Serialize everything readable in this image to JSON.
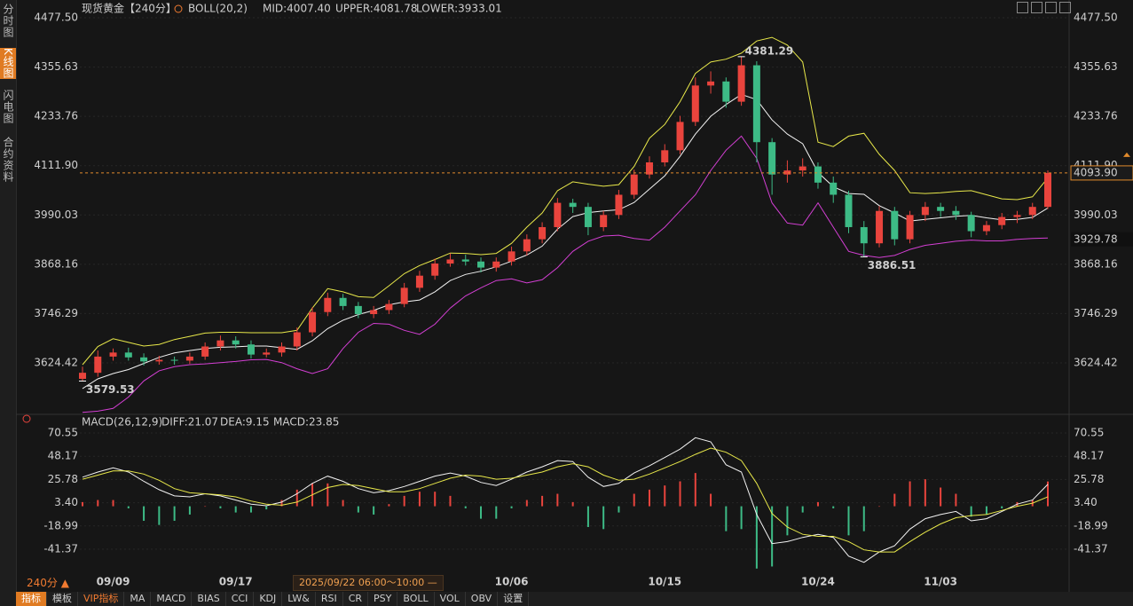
{
  "sidebar": [
    "分时图",
    "K线图",
    "闪电图",
    "合约资料"
  ],
  "sidebar_active": 1,
  "toolbar": [
    "指标",
    "模板",
    "VIP指标",
    "MA",
    "MACD",
    "BIAS",
    "CCI",
    "KDJ",
    "LW&",
    "RSI",
    "CR",
    "PSY",
    "BOLL",
    "VOL",
    "OBV",
    "设置"
  ],
  "toolbar_active": 0,
  "period_label": "240分 ▲",
  "crosshair_time": "2025/09/22 06:00～10:00 —",
  "chart_data": [
    {
      "type": "candlestick",
      "title": "现货黄金",
      "period": "【240分】",
      "indicator": "BOLL(20,2)",
      "categories": [
        null,
        null,
        "09/09",
        null,
        null,
        null,
        null,
        null,
        null,
        null,
        "09/17",
        null,
        null,
        null,
        null,
        null,
        null,
        null,
        null,
        null,
        null,
        null,
        null,
        null,
        null,
        null,
        null,
        null,
        "10/06",
        null,
        null,
        null,
        null,
        null,
        null,
        null,
        null,
        null,
        "10/15",
        null,
        null,
        null,
        null,
        null,
        null,
        null,
        null,
        null,
        "10/24",
        null,
        null,
        null,
        null,
        null,
        null,
        null,
        "11/03",
        null,
        null,
        null,
        null,
        null,
        null,
        null
      ],
      "open": [
        3585,
        3600,
        3640,
        3650,
        3638,
        3628,
        3632,
        3630,
        3640,
        3665,
        3680,
        3670,
        3645,
        3650,
        3665,
        3700,
        3750,
        3785,
        3765,
        3745,
        3755,
        3770,
        3810,
        3840,
        3870,
        3880,
        3875,
        3860,
        3875,
        3900,
        3930,
        3960,
        4020,
        4010,
        3960,
        3990,
        4040,
        4090,
        4120,
        4150,
        4220,
        4310,
        4320,
        4270,
        4360,
        4170,
        4090,
        4100,
        4110,
        4070,
        4040,
        3960,
        3920,
        4000,
        3930,
        3990,
        4010,
        4000,
        3990,
        3950,
        3965,
        3985,
        3990,
        4010
      ],
      "high": [
        3615,
        3655,
        3660,
        3662,
        3648,
        3642,
        3640,
        3650,
        3675,
        3692,
        3690,
        3680,
        3660,
        3675,
        3712,
        3762,
        3798,
        3795,
        3775,
        3765,
        3780,
        3822,
        3852,
        3882,
        3895,
        3892,
        3885,
        3885,
        3912,
        3942,
        3972,
        4032,
        4030,
        4020,
        4000,
        4052,
        4102,
        4135,
        4165,
        4235,
        4330,
        4345,
        4330,
        4381.29,
        4370,
        4180,
        4125,
        4130,
        4120,
        4085,
        4050,
        3975,
        4012,
        4010,
        4000,
        4022,
        4020,
        4012,
        3998,
        3975,
        3995,
        4000,
        4020,
        4100
      ],
      "low": [
        3579.53,
        3590,
        3630,
        3630,
        3618,
        3620,
        3620,
        3622,
        3632,
        3655,
        3660,
        3635,
        3638,
        3640,
        3655,
        3690,
        3740,
        3755,
        3735,
        3735,
        3745,
        3762,
        3800,
        3830,
        3862,
        3865,
        3848,
        3850,
        3865,
        3890,
        3920,
        3950,
        3995,
        3940,
        3950,
        3980,
        4030,
        4080,
        4110,
        4140,
        4210,
        4290,
        4255,
        4260,
        4120,
        4040,
        4070,
        4085,
        4055,
        4020,
        3945,
        3886.51,
        3910,
        3915,
        3920,
        3975,
        3985,
        3978,
        3935,
        3940,
        3955,
        3970,
        3980,
        4005
      ],
      "close": [
        3600,
        3640,
        3650,
        3638,
        3628,
        3632,
        3630,
        3640,
        3665,
        3680,
        3670,
        3645,
        3650,
        3665,
        3700,
        3750,
        3785,
        3765,
        3745,
        3755,
        3770,
        3810,
        3840,
        3870,
        3880,
        3875,
        3860,
        3875,
        3900,
        3930,
        3960,
        4020,
        4010,
        3960,
        3990,
        4040,
        4090,
        4120,
        4150,
        4220,
        4310,
        4320,
        4270,
        4360,
        4170,
        4090,
        4100,
        4110,
        4070,
        4040,
        3960,
        3920,
        4000,
        3930,
        3990,
        4010,
        4000,
        3990,
        3950,
        3965,
        3985,
        3990,
        4010,
        4093.9
      ],
      "up_color": "#e9443d",
      "down_color": "#3dbb86",
      "series": [
        {
          "name": "MID:4007.40",
          "color": "#f2f2f2",
          "values": [
            3561,
            3585,
            3598,
            3608,
            3623,
            3638,
            3649,
            3655,
            3660,
            3663,
            3664,
            3666,
            3666,
            3662,
            3658,
            3679,
            3709,
            3730,
            3744,
            3754,
            3768,
            3775,
            3780,
            3800,
            3828,
            3843,
            3851,
            3862,
            3876,
            3891,
            3913,
            3955,
            3986,
            3996,
            4000,
            4003,
            4021,
            4054,
            4087,
            4135,
            4190,
            4234,
            4263,
            4288,
            4275,
            4225,
            4190,
            4166,
            4095,
            4060,
            4043,
            4041,
            4013,
            3995,
            3975,
            3979,
            3983,
            3987,
            3989,
            3983,
            3978,
            3979,
            3984,
            4007.4
          ]
        },
        {
          "name": "UPPER:4081.78",
          "color": "#e8e84a",
          "values": [
            3620,
            3665,
            3684,
            3675,
            3666,
            3670,
            3682,
            3690,
            3698,
            3700,
            3700,
            3699,
            3699,
            3699,
            3705,
            3760,
            3808,
            3800,
            3788,
            3786,
            3815,
            3845,
            3865,
            3880,
            3896,
            3895,
            3892,
            3895,
            3920,
            3960,
            3995,
            4050,
            4072,
            4066,
            4061,
            4065,
            4110,
            4180,
            4214,
            4270,
            4340,
            4368,
            4375,
            4390,
            4420,
            4429,
            4410,
            4368,
            4170,
            4159,
            4185,
            4192,
            4140,
            4100,
            4045,
            4043,
            4045,
            4048,
            4050,
            4040,
            4030,
            4028,
            4035,
            4081.78
          ]
        },
        {
          "name": "LOWER:3933.01",
          "color": "#d33fd3",
          "values": [
            3502,
            3505,
            3512,
            3540,
            3580,
            3605,
            3615,
            3620,
            3622,
            3625,
            3628,
            3632,
            3633,
            3625,
            3610,
            3598,
            3610,
            3660,
            3700,
            3722,
            3720,
            3705,
            3695,
            3720,
            3760,
            3790,
            3810,
            3828,
            3832,
            3822,
            3830,
            3860,
            3900,
            3925,
            3938,
            3940,
            3932,
            3928,
            3960,
            4000,
            4040,
            4100,
            4150,
            4185,
            4130,
            4020,
            3970,
            3965,
            4020,
            3960,
            3900,
            3890,
            3885,
            3890,
            3905,
            3915,
            3920,
            3925,
            3928,
            3926,
            3926,
            3930,
            3932,
            3933.01
          ]
        }
      ],
      "annotations": [
        4381.29,
        3886.51,
        3579.53
      ],
      "price_line": {
        "value": 4093.9,
        "label": "4093.90",
        "color": "#e08a2c"
      },
      "marker": {
        "value": 3929.78,
        "label": "3929.78"
      },
      "ylim": [
        3501.6,
        4477.5
      ],
      "yticks": [
        {
          "value": 4477.5,
          "label": "4477.50"
        },
        4355.63,
        4233.76,
        {
          "value": 4111.9,
          "label": "4111.90"
        },
        3990.03,
        3868.16,
        3746.29,
        3624.42
      ],
      "grid": true
    },
    {
      "type": "macd",
      "title": "MACD(26,12,9)",
      "series": [
        {
          "name": "DIFF:21.07",
          "color": "#f2f2f2",
          "values": [
            28,
            33,
            37,
            33,
            24,
            16,
            10,
            9,
            12,
            10,
            6,
            2,
            0.5,
            4,
            12,
            22,
            29,
            24,
            17,
            13,
            15,
            19,
            24,
            29,
            32,
            29,
            23,
            20,
            26,
            33,
            38,
            44,
            43,
            28,
            19,
            22,
            32,
            39,
            47,
            55,
            66,
            62,
            40,
            33,
            -8,
            -36,
            -34,
            -30,
            -27,
            -30,
            -48,
            -54,
            -44,
            -38,
            -22,
            -12,
            -8,
            -5,
            -14,
            -12,
            -5,
            2,
            6,
            21.07
          ]
        },
        {
          "name": "DEA:9.15",
          "color": "#e8e84a",
          "values": [
            26,
            30,
            34,
            34,
            31,
            25,
            17,
            13,
            12,
            11,
            9,
            5,
            2,
            1,
            4,
            11,
            18,
            21,
            20,
            17,
            14,
            14,
            17,
            22,
            27,
            30,
            29,
            26,
            27,
            30,
            33,
            38,
            41,
            38,
            30,
            25,
            26,
            31,
            37,
            43,
            50,
            56,
            52,
            44,
            22,
            -7,
            -20,
            -27,
            -29,
            -29,
            -34,
            -42,
            -44,
            -44,
            -34,
            -25,
            -17,
            -11,
            -9,
            -8,
            -4,
            0,
            3,
            9.15
          ]
        }
      ],
      "histogram": {
        "name": "MACD:23.85",
        "label_color": "#d33fd3",
        "up_color": "#e9443d",
        "down_color": "#3dbb86",
        "values": [
          4,
          6,
          6,
          -2,
          -14,
          -18,
          -14,
          -8,
          0,
          -2,
          -6,
          -6,
          -3,
          6,
          16,
          22,
          22,
          6,
          -6,
          -8,
          2,
          10,
          14,
          14,
          10,
          -2,
          -12,
          -12,
          -2,
          6,
          10,
          12,
          4,
          -20,
          -22,
          -6,
          12,
          16,
          20,
          24,
          32,
          12,
          -24,
          -22,
          -60,
          -58,
          -28,
          -6,
          4,
          -2,
          -28,
          -24,
          0,
          12,
          24,
          26,
          18,
          12,
          -10,
          -8,
          -2,
          4,
          6,
          23.85
        ]
      },
      "ylim": [
        -59.31,
        70.55
      ],
      "yticks": [
        70.55,
        48.17,
        25.78,
        {
          "value": 3.4,
          "label": "3.40"
        },
        -18.99,
        -41.37
      ],
      "grid": true
    }
  ]
}
